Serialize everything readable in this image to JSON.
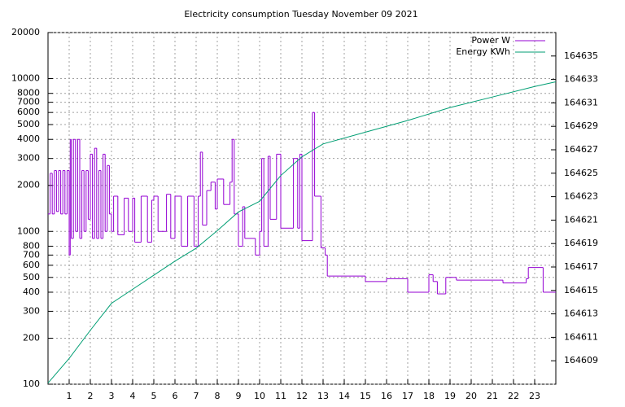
{
  "chart_data": {
    "type": "line",
    "title": "Electricity consumption Tuesday November 09 2021",
    "xlim": [
      0,
      24
    ],
    "xticks": [
      1,
      2,
      3,
      4,
      5,
      6,
      7,
      8,
      9,
      10,
      11,
      12,
      13,
      14,
      15,
      16,
      17,
      18,
      19,
      20,
      21,
      22,
      23
    ],
    "ylim": [
      100,
      20000
    ],
    "log_scale_y": true,
    "yticks": [
      100,
      200,
      300,
      400,
      500,
      600,
      700,
      800,
      1000,
      2000,
      3000,
      4000,
      5000,
      6000,
      7000,
      8000,
      10000,
      20000
    ],
    "y2lim": [
      164607,
      164637
    ],
    "y2ticks": [
      164609,
      164611,
      164613,
      164615,
      164617,
      164619,
      164621,
      164623,
      164625,
      164627,
      164629,
      164631,
      164633,
      164635
    ],
    "grid": true,
    "legend": "top-right",
    "series": [
      {
        "name": "Power W",
        "color": "#9400d3",
        "step": true,
        "x": [
          0,
          0.1,
          0.2,
          0.3,
          0.4,
          0.5,
          0.6,
          0.7,
          0.8,
          0.9,
          1.0,
          1.05,
          1.1,
          1.2,
          1.3,
          1.4,
          1.5,
          1.6,
          1.7,
          1.8,
          1.9,
          2.0,
          2.1,
          2.2,
          2.3,
          2.4,
          2.5,
          2.6,
          2.7,
          2.8,
          2.9,
          3.0,
          3.1,
          3.3,
          3.6,
          3.8,
          4.0,
          4.1,
          4.4,
          4.7,
          4.9,
          5.0,
          5.2,
          5.6,
          5.8,
          6.0,
          6.3,
          6.6,
          6.9,
          7.1,
          7.2,
          7.3,
          7.5,
          7.7,
          7.9,
          8.0,
          8.3,
          8.6,
          8.7,
          8.8,
          9.0,
          9.2,
          9.3,
          9.8,
          10.0,
          10.1,
          10.2,
          10.4,
          10.5,
          10.8,
          11.0,
          11.6,
          11.8,
          11.9,
          12.0,
          12.5,
          12.6,
          12.9,
          13.1,
          13.2,
          15.0,
          16.0,
          17.0,
          18.0,
          18.2,
          18.4,
          18.8,
          19.3,
          21.5,
          22.6,
          22.7,
          23.4
        ],
        "values": [
          1300,
          2400,
          1300,
          2500,
          1350,
          2500,
          1300,
          2500,
          1300,
          2500,
          700,
          4000,
          900,
          4000,
          1000,
          4000,
          900,
          2500,
          1000,
          2500,
          1200,
          3200,
          900,
          3500,
          900,
          2500,
          900,
          3200,
          1000,
          2700,
          1300,
          1000,
          1700,
          950,
          1650,
          1000,
          1650,
          850,
          1700,
          850,
          1600,
          1700,
          1000,
          1750,
          900,
          1700,
          800,
          1700,
          800,
          1700,
          3300,
          1100,
          1850,
          2100,
          1400,
          2200,
          1500,
          2100,
          4000,
          1300,
          800,
          1450,
          900,
          700,
          1000,
          3000,
          800,
          3100,
          1200,
          3200,
          1050,
          3000,
          1050,
          3200,
          870,
          6000,
          1700,
          780,
          700,
          510,
          470,
          490,
          400,
          520,
          470,
          390,
          500,
          480,
          460,
          490,
          580,
          400
        ]
      },
      {
        "name": "Energy KWh",
        "color": "#009e73",
        "axis": "y2",
        "x": [
          0,
          1,
          2,
          3,
          4,
          5,
          6,
          7,
          8,
          9,
          10,
          11,
          12,
          13,
          15,
          17,
          19,
          21,
          23,
          24
        ],
        "values": [
          164607.1,
          164609.2,
          164611.6,
          164613.9,
          164615.1,
          164616.3,
          164617.5,
          164618.6,
          164620.1,
          164621.7,
          164622.6,
          164624.8,
          164626.4,
          164627.5,
          164628.5,
          164629.5,
          164630.6,
          164631.5,
          164632.4,
          164632.8
        ]
      }
    ]
  }
}
